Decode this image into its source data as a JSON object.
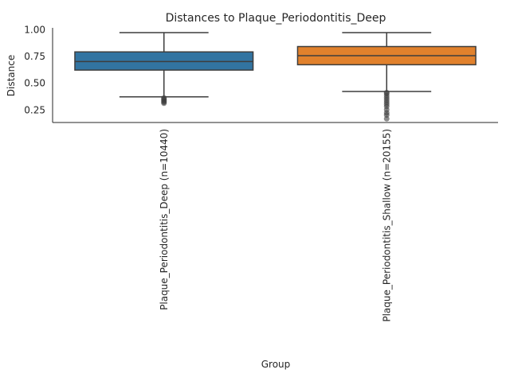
{
  "chart_data": {
    "type": "box",
    "title": "Distances to Plaque_Periodontitis_Deep",
    "xlabel": "Group",
    "ylabel": "Distance",
    "ylim": [
      0.13,
      1.0
    ],
    "yticks": [
      0.25,
      0.5,
      0.75,
      1.0
    ],
    "ytick_labels": [
      "0.25",
      "0.50",
      "0.75",
      "1.00"
    ],
    "grid": false,
    "categories": [
      "Plaque_Periodontitis_Deep (n=10440)",
      "Plaque_Periodontitis_Shallow (n=20155)"
    ],
    "boxes": [
      {
        "whisker_low": 0.37,
        "q1": 0.62,
        "median": 0.7,
        "q3": 0.79,
        "whisker_high": 0.97,
        "outliers": [
          0.36,
          0.35,
          0.34,
          0.33,
          0.32,
          0.31
        ],
        "color": "#3274a1"
      },
      {
        "whisker_low": 0.42,
        "q1": 0.67,
        "median": 0.755,
        "q3": 0.84,
        "whisker_high": 0.97,
        "outliers": [
          0.41,
          0.4,
          0.38,
          0.36,
          0.34,
          0.32,
          0.3,
          0.28,
          0.25,
          0.22,
          0.2,
          0.165
        ],
        "color": "#e1812c"
      }
    ]
  }
}
